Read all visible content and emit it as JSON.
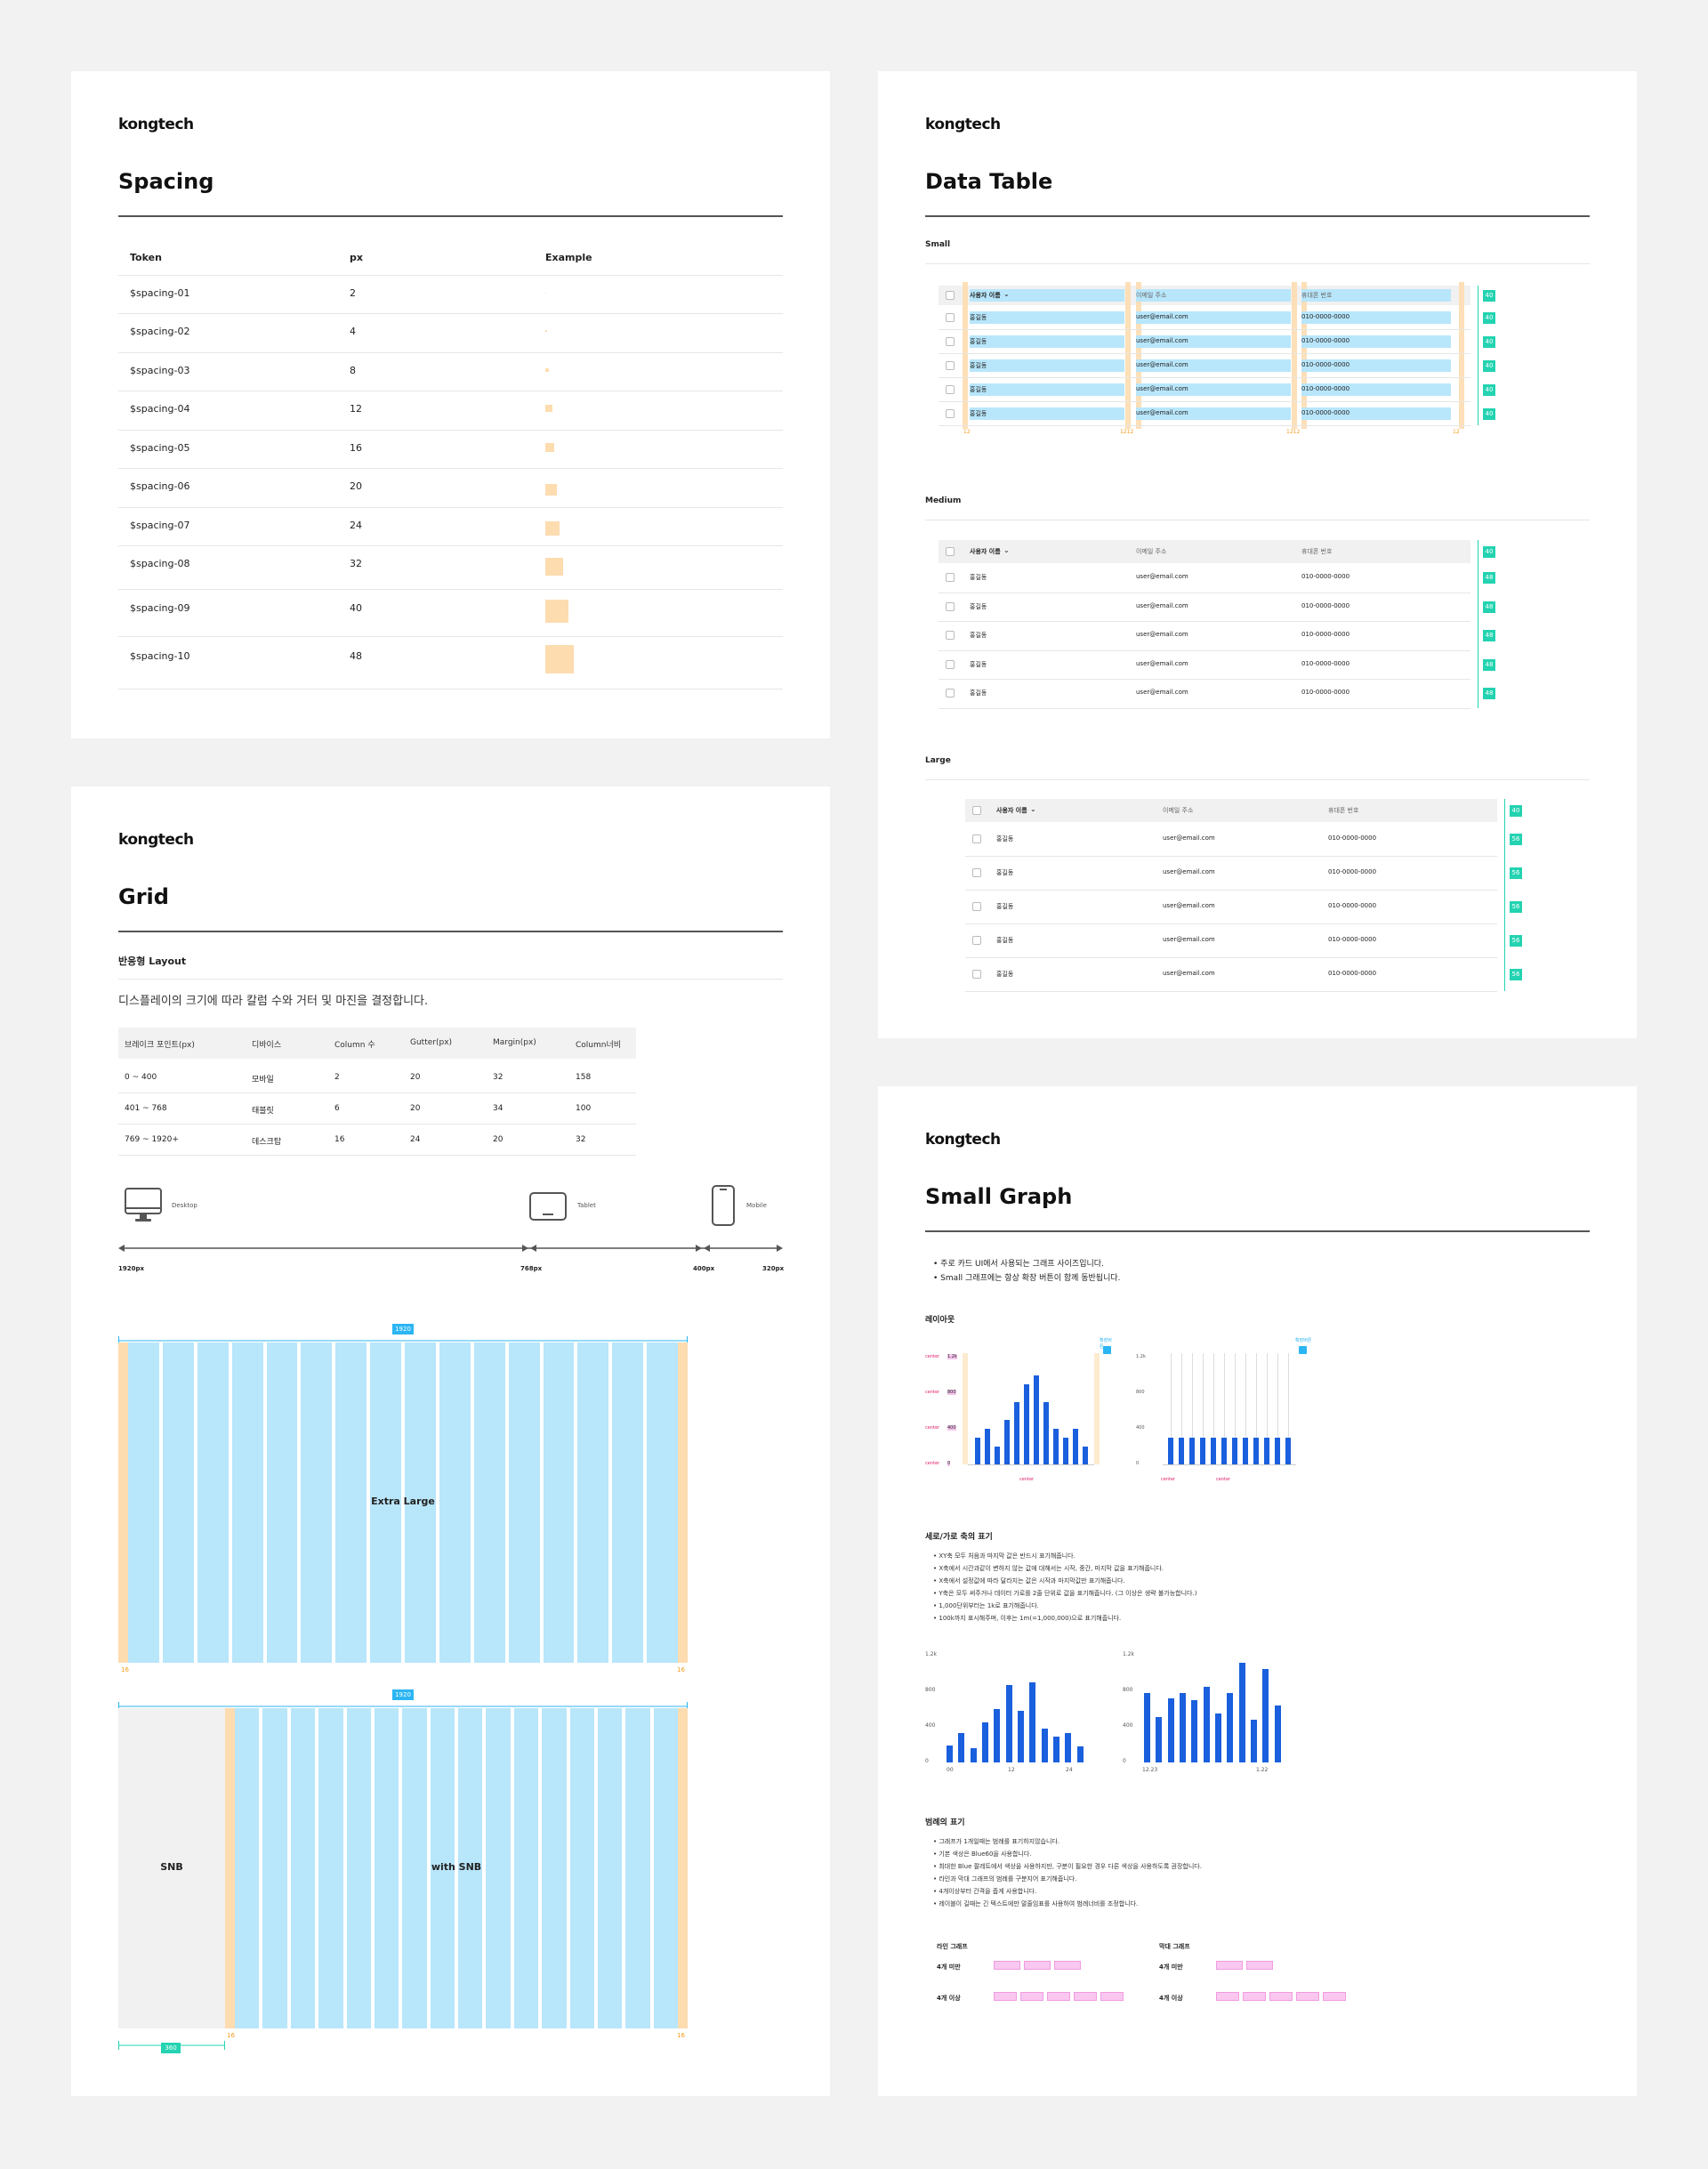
{
  "brand": "kongtech",
  "spacing": {
    "title": "Spacing",
    "headers": {
      "token": "Token",
      "px": "px",
      "example": "Example"
    },
    "rows": [
      {
        "token": "$spacing-01",
        "px": "2"
      },
      {
        "token": "$spacing-02",
        "px": "4"
      },
      {
        "token": "$spacing-03",
        "px": "8"
      },
      {
        "token": "$spacing-04",
        "px": "12"
      },
      {
        "token": "$spacing-05",
        "px": "16"
      },
      {
        "token": "$spacing-06",
        "px": "20"
      },
      {
        "token": "$spacing-07",
        "px": "24"
      },
      {
        "token": "$spacing-08",
        "px": "32"
      },
      {
        "token": "$spacing-09",
        "px": "40"
      },
      {
        "token": "$spacing-10",
        "px": "48"
      }
    ]
  },
  "grid": {
    "title": "Grid",
    "section": "반응형 Layout",
    "desc": "디스플레이의 크기에 따라 칼럼 수와 거터 및 마진을 결정합니다.",
    "headers": [
      "브레이크 포인트(px)",
      "디바이스",
      "Column 수",
      "Gutter(px)",
      "Margin(px)",
      "Column너비"
    ],
    "rows": [
      [
        "0 ~ 400",
        "모바일",
        "2",
        "20",
        "32",
        "158"
      ],
      [
        "401 ~ 768",
        "태블릿",
        "6",
        "20",
        "34",
        "100"
      ],
      [
        "769 ~ 1920+",
        "데스크탑",
        "16",
        "24",
        "20",
        "32"
      ]
    ],
    "devices": {
      "desktop": "Desktop",
      "tablet": "Tablet",
      "mobile": "Mobile"
    },
    "breakpoints": [
      "1920px",
      "768px",
      "400px",
      "320px"
    ],
    "xl": {
      "width": "1920",
      "label": "Extra Large",
      "margin": "16"
    },
    "snb": {
      "width": "1920",
      "snb": "SNB",
      "label": "with SNB",
      "margin": "16",
      "snb_width": "360"
    }
  },
  "table": {
    "title": "Data Table",
    "sizes": [
      "Small",
      "Medium",
      "Large"
    ],
    "headers": [
      "사용자 이름",
      "이메일 주소",
      "휴대폰 번호"
    ],
    "row": {
      "name": "홍길동",
      "email": "user@email.com",
      "phone": "010-0000-0000"
    },
    "heights": {
      "small_head": "40",
      "small_row": "40",
      "medium_head": "40",
      "medium_row": "48",
      "large_head": "40",
      "large_row": "56"
    },
    "dims": {
      "pad": "12",
      "pad2": "1212"
    }
  },
  "graph": {
    "title": "Small Graph",
    "intro": [
      "주로 카드 UI에서 사용되는 그래프 사이즈입니다.",
      "Small 그래프에는 항상 확장 버튼이 함께 동반됩니다."
    ],
    "layout": "레이아웃",
    "axes_title": "세로/가로 축의 표기",
    "axes_notes": [
      "XY축 모두 처음과 마지막 값은 반드시 표기해줍니다.",
      "X축에서 시간과같이 변하지 않는 값에 대해서는 시작, 중간, 마지막 값을 표기해줍니다.",
      "X축에서 설정값에 따라 달라지는 값은 시작과 마지막값만 표기해줍니다.",
      "Y축은 모두 써주거나 데이터 가로를 2줄 단위로 값을 표기해줍니다. (그 이상은 생략 불가능합니다.)",
      "1,000단위부터는 1k로 표기해줍니다.",
      "100k까지 표시해주며, 이후는 1m(=1,000,000)으로 표기해줍니다."
    ],
    "legend_title": "범례의 표기",
    "legend_notes": [
      "그래프가 1개일때는 범례를 표기하지않습니다.",
      "기본 색상은 Blue60을 사용합니다.",
      "최대한 Blue 팔레트에서 색상을 사용하지만, 구분이 필요한 경우 다른 색상을 사용하도록 권장합니다.",
      "라인과 막대 그래프의 범례를 구분지어 표기해줍니다.",
      "4개이상부터 간격을 좁게 사용합니다.",
      "레이블이 길때는 긴 텍스트에만 말줄임표를 사용하여 범례너비를 조정합니다."
    ],
    "legend_cols": [
      "라인 그래프",
      "막대 그래프"
    ],
    "legend_rows": [
      "4개 미만",
      "4개 이상"
    ],
    "ticks_a": {
      "y": [
        "1.2k",
        "800",
        "400",
        "0"
      ],
      "x": [
        "00",
        "12",
        "24"
      ]
    },
    "ticks_b": {
      "y": [
        "1.2k",
        "800",
        "400",
        "0"
      ],
      "x": [
        "12.23",
        "1.22"
      ]
    },
    "layout_ticks": {
      "y": [
        "1.2k",
        "800",
        "400",
        "0"
      ]
    },
    "layout_labels": {
      "center": "center",
      "expand": "확장버튼"
    },
    "chart_a": [
      190,
      330,
      160,
      450,
      600,
      870,
      580,
      900,
      380,
      290,
      330,
      180
    ],
    "chart_b": [
      780,
      510,
      720,
      780,
      700,
      850,
      550,
      780,
      1120,
      480,
      1050,
      640
    ],
    "layout_chart": [
      3,
      4,
      2,
      5,
      7,
      9,
      10,
      7,
      4,
      3,
      4,
      2
    ]
  }
}
